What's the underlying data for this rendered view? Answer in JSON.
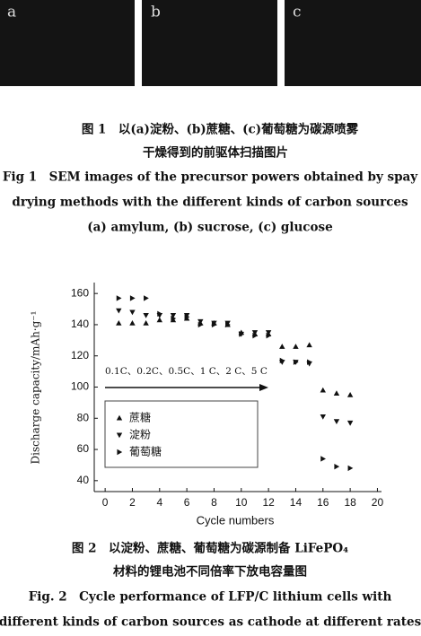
{
  "figure1": {
    "panels": [
      {
        "label": "a"
      },
      {
        "label": "b"
      },
      {
        "label": "c"
      }
    ],
    "caption": [
      "图 1　以(a)淀粉、(b)蔗糖、(c)葡萄糖为碳源喷雾",
      "干燥得到的前驱体扫描图片",
      "Fig 1　SEM images of the precursor powers obtained by spay",
      "drying methods with the different kinds of carbon sources",
      "(a) amylum, (b) sucrose, (c) glucose"
    ]
  },
  "chart_data": {
    "type": "scatter",
    "x_label": "Cycle numbers",
    "y_label": "Discharge capacity/mAh·g⁻¹",
    "annotation": "0.1C、0.2C、0.5C、1 C、2 C、5 C",
    "x": [
      1,
      2,
      3,
      4,
      5,
      6,
      7,
      8,
      9,
      10,
      11,
      12,
      13,
      14,
      15,
      16,
      17,
      18
    ],
    "series": [
      {
        "name": "蔗糖",
        "color": "#111111",
        "marker": "triangle-up",
        "values": [
          141,
          141,
          141,
          143,
          143,
          144,
          141,
          141,
          140,
          135,
          134,
          134,
          126,
          126,
          127,
          98,
          96,
          95
        ]
      },
      {
        "name": "淀粉",
        "color": "#111111",
        "marker": "triangle-down",
        "values": [
          149,
          148,
          146,
          146,
          146,
          146,
          142,
          141,
          141,
          134,
          135,
          135,
          116,
          116,
          115,
          81,
          78,
          77
        ]
      },
      {
        "name": "葡萄糖",
        "color": "#111111",
        "marker": "triangle-right",
        "values": [
          157,
          157,
          157,
          147,
          144,
          145,
          140,
          140,
          140,
          134,
          133,
          133,
          117,
          116,
          116,
          54,
          49,
          48
        ]
      }
    ],
    "xlim": [
      -0.8,
      20.3
    ],
    "ylim": [
      33,
      167
    ],
    "xticks": [
      0,
      2,
      4,
      6,
      8,
      10,
      12,
      14,
      16,
      18,
      20
    ],
    "yticks": [
      40,
      60,
      80,
      100,
      120,
      140,
      160
    ],
    "grid": false
  },
  "figure2": {
    "caption": [
      "图 2　以淀粉、蔗糖、葡萄糖为碳源制备 LiFePO₄",
      "材料的锂电池不同倍率下放电容量图",
      "Fig. 2　Cycle performance of LFP/C lithium cells with",
      "different kinds of carbon sources as cathode at different rates"
    ]
  }
}
